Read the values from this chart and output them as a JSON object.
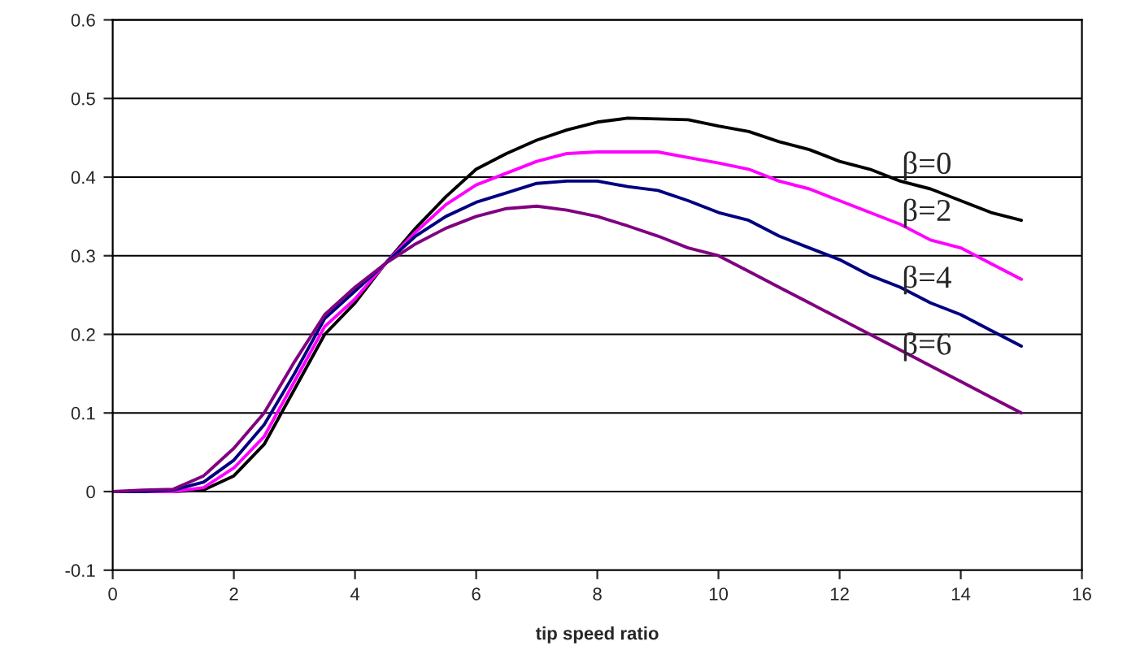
{
  "chart_data": {
    "type": "line",
    "xlabel": "tip speed ratio",
    "x": [
      0,
      0.5,
      1,
      1.5,
      2,
      2.5,
      3,
      3.5,
      4,
      4.5,
      5,
      5.5,
      6,
      6.5,
      7,
      7.5,
      8,
      8.5,
      9,
      9.5,
      10,
      10.5,
      11,
      11.5,
      12,
      12.5,
      13,
      13.5,
      14,
      14.5,
      15
    ],
    "series": [
      {
        "name": "β=0",
        "color": "#000000",
        "values": [
          0,
          0,
          0,
          0.002,
          0.02,
          0.06,
          0.13,
          0.2,
          0.24,
          0.29,
          0.335,
          0.375,
          0.41,
          0.43,
          0.447,
          0.46,
          0.47,
          0.475,
          0.474,
          0.473,
          0.465,
          0.458,
          0.445,
          0.435,
          0.42,
          0.41,
          0.395,
          0.385,
          0.37,
          0.355,
          0.345
        ]
      },
      {
        "name": "β=2",
        "color": "#ff00ff",
        "values": [
          0,
          0,
          0,
          0.005,
          0.03,
          0.07,
          0.14,
          0.21,
          0.245,
          0.29,
          0.33,
          0.365,
          0.39,
          0.405,
          0.42,
          0.43,
          0.432,
          0.432,
          0.432,
          0.425,
          0.418,
          0.41,
          0.395,
          0.385,
          0.37,
          0.355,
          0.34,
          0.32,
          0.31,
          0.29,
          0.27
        ]
      },
      {
        "name": "β=4",
        "color": "#000080",
        "values": [
          0,
          0,
          0.002,
          0.012,
          0.04,
          0.085,
          0.15,
          0.22,
          0.255,
          0.29,
          0.325,
          0.35,
          0.368,
          0.38,
          0.392,
          0.395,
          0.395,
          0.388,
          0.383,
          0.37,
          0.355,
          0.345,
          0.325,
          0.31,
          0.295,
          0.275,
          0.26,
          0.24,
          0.225,
          0.205,
          0.185
        ]
      },
      {
        "name": "β=6",
        "color": "#800080",
        "values": [
          0,
          0.002,
          0.003,
          0.02,
          0.055,
          0.1,
          0.165,
          0.225,
          0.26,
          0.29,
          0.315,
          0.335,
          0.35,
          0.36,
          0.363,
          0.358,
          0.35,
          0.338,
          0.325,
          0.31,
          0.3,
          0.28,
          0.26,
          0.24,
          0.22,
          0.2,
          0.18,
          0.16,
          0.14,
          0.12,
          0.1
        ]
      }
    ],
    "xlim": [
      0,
      16
    ],
    "xticks": [
      0,
      2,
      4,
      6,
      8,
      10,
      12,
      14,
      16
    ],
    "ylim": [
      -0.1,
      0.6
    ],
    "yticks": [
      -0.1,
      0,
      0.1,
      0.2,
      0.3,
      0.4,
      0.5,
      0.6
    ],
    "grid": "y",
    "legend": false,
    "marker": "none",
    "line_style": "solid"
  }
}
